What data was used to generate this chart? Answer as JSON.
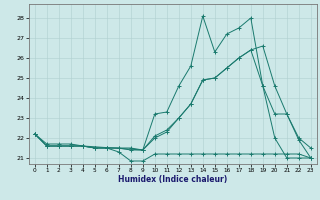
{
  "title": "",
  "xlabel": "Humidex (Indice chaleur)",
  "xlim": [
    -0.5,
    23.5
  ],
  "ylim": [
    20.7,
    28.7
  ],
  "yticks": [
    21,
    22,
    23,
    24,
    25,
    26,
    27,
    28
  ],
  "xticks": [
    0,
    1,
    2,
    3,
    4,
    5,
    6,
    7,
    8,
    9,
    10,
    11,
    12,
    13,
    14,
    15,
    16,
    17,
    18,
    19,
    20,
    21,
    22,
    23
  ],
  "bg_color": "#cde8e8",
  "grid_color": "#b0d0d0",
  "line_color": "#1a7a6e",
  "lines": [
    {
      "x": [
        0,
        1,
        2,
        3,
        4,
        5,
        6,
        7,
        8,
        9,
        10,
        11,
        12,
        13,
        14,
        15,
        16,
        17,
        18,
        19,
        20,
        21,
        22,
        23
      ],
      "y": [
        22.2,
        21.6,
        21.6,
        21.6,
        21.6,
        21.5,
        21.5,
        21.3,
        20.85,
        20.85,
        21.2,
        21.2,
        21.2,
        21.2,
        21.2,
        21.2,
        21.2,
        21.2,
        21.2,
        21.2,
        21.2,
        21.2,
        21.2,
        21.0
      ]
    },
    {
      "x": [
        0,
        1,
        2,
        3,
        4,
        5,
        6,
        7,
        8,
        9,
        10,
        11,
        12,
        13,
        14,
        15,
        16,
        17,
        18,
        19,
        20,
        21,
        22,
        23
      ],
      "y": [
        22.2,
        21.6,
        21.6,
        21.6,
        21.6,
        21.5,
        21.5,
        21.5,
        21.4,
        21.4,
        23.2,
        23.3,
        24.6,
        25.6,
        28.1,
        26.3,
        27.2,
        27.5,
        28.0,
        24.6,
        22.0,
        21.0,
        21.0,
        21.0
      ]
    },
    {
      "x": [
        0,
        1,
        2,
        3,
        4,
        5,
        6,
        7,
        8,
        9,
        10,
        11,
        12,
        13,
        14,
        15,
        16,
        17,
        18,
        19,
        20,
        21,
        22,
        23
      ],
      "y": [
        22.2,
        21.6,
        21.6,
        21.6,
        21.6,
        21.5,
        21.5,
        21.5,
        21.5,
        21.4,
        22.0,
        22.3,
        23.0,
        23.7,
        24.9,
        25.0,
        25.5,
        26.0,
        26.4,
        26.6,
        24.6,
        23.2,
        22.0,
        21.5
      ]
    },
    {
      "x": [
        0,
        1,
        2,
        3,
        4,
        9,
        10,
        11,
        12,
        13,
        14,
        15,
        16,
        17,
        18,
        19,
        20,
        21,
        22,
        23
      ],
      "y": [
        22.2,
        21.7,
        21.7,
        21.7,
        21.6,
        21.4,
        22.1,
        22.4,
        23.0,
        23.7,
        24.9,
        25.0,
        25.5,
        26.0,
        26.4,
        24.6,
        23.2,
        23.2,
        21.9,
        21.0
      ]
    }
  ]
}
